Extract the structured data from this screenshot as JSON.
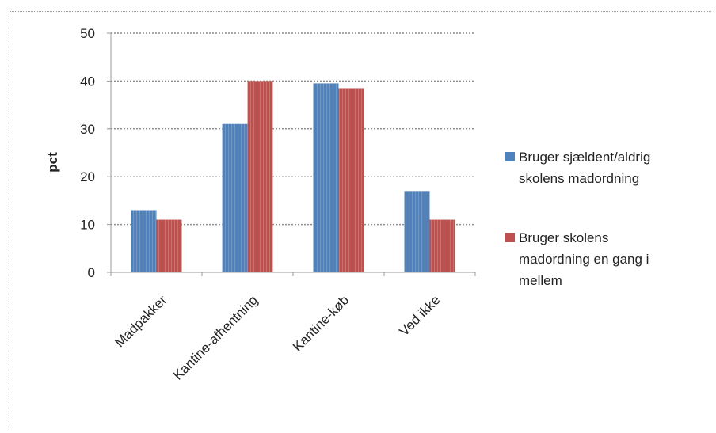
{
  "chart_data": {
    "type": "bar",
    "title": "",
    "xlabel": "",
    "ylabel": "pct",
    "ylim": [
      0,
      50
    ],
    "yticks": [
      0,
      10,
      20,
      30,
      40,
      50
    ],
    "grid": true,
    "legend_position": "right",
    "categories": [
      "Madpakker",
      "Kantine-afhentning",
      "Kantine-køb",
      "Ved ikke"
    ],
    "series": [
      {
        "name": "Bruger sjældent/aldrig skolens madordning",
        "legend_lines": [
          "Bruger sjældent/aldrig",
          "skolens madordning"
        ],
        "color": "#4f81bd",
        "values": [
          13,
          31,
          39.5,
          17
        ]
      },
      {
        "name": "Bruger skolens madordning en gang i mellem",
        "legend_lines": [
          "Bruger skolens",
          "madordning en gang i",
          "mellem"
        ],
        "color": "#c0504d",
        "values": [
          11,
          40,
          38.5,
          11
        ]
      }
    ]
  }
}
